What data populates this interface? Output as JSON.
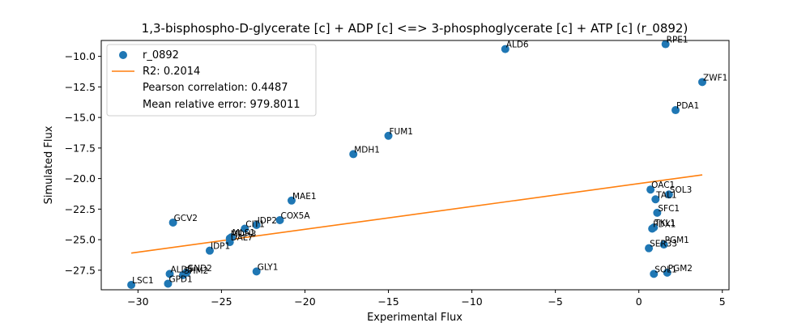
{
  "chart_data": {
    "type": "scatter",
    "title": "1,3-bisphospho-D-glycerate [c] + ADP [c] <=> 3-phosphoglycerate [c] + ATP [c] (r_0892)",
    "xlabel": "Experimental Flux",
    "ylabel": "Simulated Flux",
    "xlim": [
      -32.2,
      5.4
    ],
    "ylim": [
      -29.1,
      -8.7
    ],
    "xticks": [
      -30,
      -25,
      -20,
      -15,
      -10,
      -5,
      0,
      5
    ],
    "yticks": [
      -27.5,
      -25.0,
      -22.5,
      -20.0,
      -17.5,
      -15.0,
      -12.5,
      -10.0
    ],
    "xtick_labels": [
      "−30",
      "−25",
      "−20",
      "−15",
      "−10",
      "−5",
      "0",
      "5"
    ],
    "ytick_labels": [
      "−27.5",
      "−25.0",
      "−22.5",
      "−20.0",
      "−17.5",
      "−15.0",
      "−12.5",
      "−10.0"
    ],
    "grid": false,
    "legend_position": "top-left",
    "colors": {
      "points": "#1f77b4",
      "fit": "#ff7f0e"
    },
    "legend": [
      {
        "label": "r_0892",
        "marker": "point"
      },
      {
        "label": "R2: 0.2014",
        "marker": "line"
      },
      {
        "label": "Pearson correlation: 0.4487",
        "marker": "none"
      },
      {
        "label": "Mean relative error: 979.8011",
        "marker": "none"
      }
    ],
    "fit_line": {
      "x": [
        -30.4,
        3.8
      ],
      "y": [
        -26.1,
        -19.7
      ]
    },
    "points": [
      {
        "label": "LSC1",
        "x": -30.4,
        "y": -28.7
      },
      {
        "label": "GPD1",
        "x": -28.2,
        "y": -28.6
      },
      {
        "label": "ALD5",
        "x": -28.1,
        "y": -27.8
      },
      {
        "label": "SHM2",
        "x": -27.3,
        "y": -27.9
      },
      {
        "label": "GND2",
        "x": -27.1,
        "y": -27.7
      },
      {
        "label": "GCV2",
        "x": -27.9,
        "y": -23.6
      },
      {
        "label": "IDP1",
        "x": -25.7,
        "y": -25.9
      },
      {
        "label": "DAL7",
        "x": -24.5,
        "y": -25.2
      },
      {
        "label": "MDH3",
        "x": -24.5,
        "y": -24.9
      },
      {
        "label": "MLS1",
        "x": -24.4,
        "y": -24.8
      },
      {
        "label": "CIT1",
        "x": -23.6,
        "y": -24.1
      },
      {
        "label": "IDP2",
        "x": -22.9,
        "y": -23.8
      },
      {
        "label": "COX5A",
        "x": -21.5,
        "y": -23.4
      },
      {
        "label": "GLY1",
        "x": -22.9,
        "y": -27.6
      },
      {
        "label": "MAE1",
        "x": -20.8,
        "y": -21.8
      },
      {
        "label": "MDH1",
        "x": -17.1,
        "y": -18.0
      },
      {
        "label": "FUM1",
        "x": -15.0,
        "y": -16.5
      },
      {
        "label": "ALD6",
        "x": -8.0,
        "y": -9.4
      },
      {
        "label": "RPE1",
        "x": 1.6,
        "y": -9.0
      },
      {
        "label": "ZWF1",
        "x": 3.8,
        "y": -12.1
      },
      {
        "label": "PDA1",
        "x": 2.2,
        "y": -14.4
      },
      {
        "label": "OAC1",
        "x": 0.7,
        "y": -20.9
      },
      {
        "label": "SOL3",
        "x": 1.8,
        "y": -21.3
      },
      {
        "label": "TAL1",
        "x": 1.0,
        "y": -21.7
      },
      {
        "label": "SFC1",
        "x": 1.1,
        "y": -22.8
      },
      {
        "label": "PDX1",
        "x": 0.8,
        "y": -24.1
      },
      {
        "label": "TKL1",
        "x": 0.9,
        "y": -24.0
      },
      {
        "label": "PGM1",
        "x": 1.5,
        "y": -25.4
      },
      {
        "label": "SER33",
        "x": 0.6,
        "y": -25.7
      },
      {
        "label": "SOL1",
        "x": 0.9,
        "y": -27.8
      },
      {
        "label": "PGM2",
        "x": 1.7,
        "y": -27.7
      }
    ]
  }
}
